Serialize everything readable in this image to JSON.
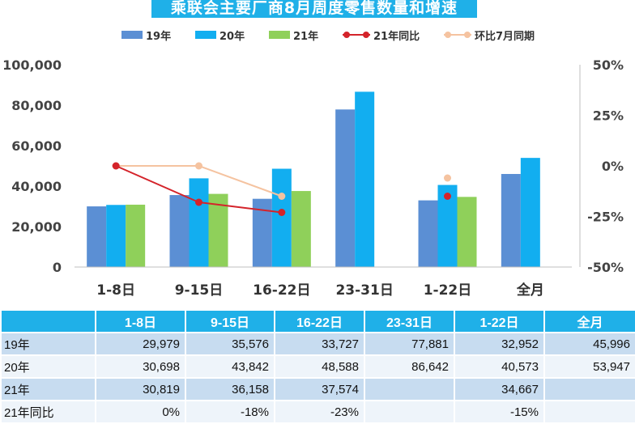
{
  "title": "乘联会主要厂商8月周度零售数量和增速",
  "colors": {
    "s19": "#5b8fd4",
    "s20": "#12aef0",
    "s21": "#8fd05a",
    "yoy": "#d4232a",
    "mom": "#f5c3a0",
    "title_bg": "#1fb0e8",
    "band_a": "#c7dcf0",
    "band_b": "#eef4fa"
  },
  "chart_data": {
    "type": "bar",
    "categories": [
      "1-8日",
      "9-15日",
      "16-22日",
      "23-31日",
      "1-22日",
      "全月"
    ],
    "series": [
      {
        "name": "19年",
        "kind": "bar",
        "values": [
          29979,
          35576,
          33727,
          77881,
          32952,
          45996
        ]
      },
      {
        "name": "20年",
        "kind": "bar",
        "values": [
          30698,
          43842,
          48588,
          86642,
          40573,
          53947
        ]
      },
      {
        "name": "21年",
        "kind": "bar",
        "values": [
          30819,
          36158,
          37574,
          null,
          34667,
          null
        ]
      },
      {
        "name": "21年同比",
        "kind": "line",
        "axis": "right",
        "values": [
          0,
          -18,
          -23,
          null,
          -15,
          null
        ]
      },
      {
        "name": "环比7月同期",
        "kind": "line",
        "axis": "right",
        "values": [
          0,
          0,
          -15,
          null,
          -6,
          null
        ]
      }
    ],
    "y_left": {
      "min": 0,
      "max": 100000,
      "ticks": [
        "0",
        "20,000",
        "40,000",
        "60,000",
        "80,000",
        "100,000"
      ]
    },
    "y_right": {
      "min": -50,
      "max": 50,
      "ticks": [
        "-50%",
        "-25%",
        "0%",
        "25%",
        "50%"
      ]
    },
    "legend_position": "top",
    "grid": false
  },
  "table": {
    "headers": [
      "",
      "1-8日",
      "9-15日",
      "16-22日",
      "23-31日",
      "1-22日",
      "全月"
    ],
    "rows": [
      {
        "label": "19年",
        "cells": [
          "29,979",
          "35,576",
          "33,727",
          "77,881",
          "32,952",
          "45,996"
        ]
      },
      {
        "label": "20年",
        "cells": [
          "30,698",
          "43,842",
          "48,588",
          "86,642",
          "40,573",
          "53,947"
        ]
      },
      {
        "label": "21年",
        "cells": [
          "30,819",
          "36,158",
          "37,574",
          "",
          "34,667",
          ""
        ]
      },
      {
        "label": "21年同比",
        "cells": [
          "0%",
          "-18%",
          "-23%",
          "",
          "-15%",
          ""
        ]
      }
    ]
  }
}
